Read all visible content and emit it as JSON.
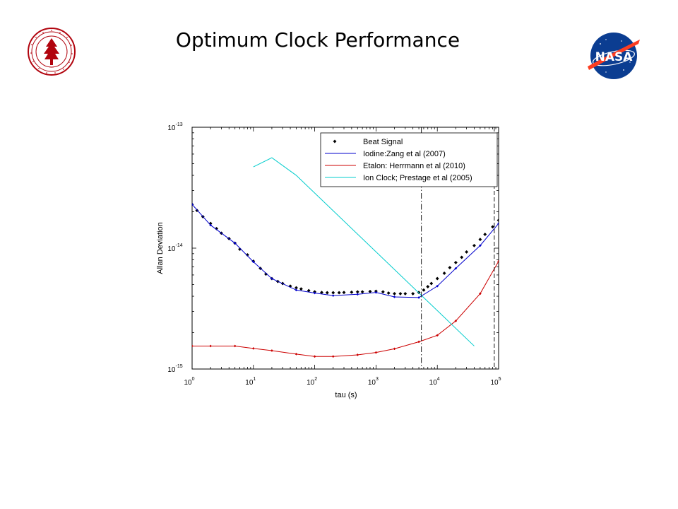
{
  "slide": {
    "title": "Optimum Clock Performance",
    "left_logo": "stanford-seal-icon",
    "right_logo": "nasa-logo-icon"
  },
  "chart_data": {
    "type": "line",
    "xlabel": "tau (s)",
    "ylabel": "Allan Deviation",
    "xscale": "log",
    "yscale": "log",
    "xlim": [
      1,
      100000
    ],
    "ylim": [
      1e-15,
      1e-13
    ],
    "x_ticks": [
      {
        "base": "10",
        "exp": "0"
      },
      {
        "base": "10",
        "exp": "1"
      },
      {
        "base": "10",
        "exp": "2"
      },
      {
        "base": "10",
        "exp": "3"
      },
      {
        "base": "10",
        "exp": "4"
      },
      {
        "base": "10",
        "exp": "5"
      }
    ],
    "y_ticks": [
      {
        "base": "10",
        "exp": "-15"
      },
      {
        "base": "10",
        "exp": "-14"
      },
      {
        "base": "10",
        "exp": "-13"
      }
    ],
    "grid": false,
    "legend_position": "top-right",
    "series": [
      {
        "name": "Beat Signal",
        "style": "markers",
        "color": "#000000",
        "x": [
          1,
          1.2,
          1.5,
          2,
          2.5,
          3,
          4,
          5,
          6,
          8,
          10,
          13,
          16,
          20,
          25,
          30,
          40,
          50,
          60,
          80,
          100,
          130,
          160,
          200,
          250,
          300,
          400,
          500,
          600,
          800,
          1000,
          1300,
          1600,
          2000,
          2500,
          3000,
          4000,
          5000,
          6000,
          7000,
          8000,
          10000,
          13000,
          16000,
          20000,
          25000,
          30000,
          40000,
          50000,
          60000,
          80000,
          100000
        ],
        "y": [
          2.3e-14,
          2.05e-14,
          1.82e-14,
          1.6e-14,
          1.45e-14,
          1.33e-14,
          1.2e-14,
          1.1e-14,
          9.8e-15,
          8.8e-15,
          7.8e-15,
          6.8e-15,
          6.1e-15,
          5.6e-15,
          5.3e-15,
          5.1e-15,
          4.85e-15,
          4.7e-15,
          4.6e-15,
          4.45e-15,
          4.35e-15,
          4.3e-15,
          4.28e-15,
          4.28e-15,
          4.28e-15,
          4.3e-15,
          4.32e-15,
          4.35e-15,
          4.35e-15,
          4.38e-15,
          4.4e-15,
          4.35e-15,
          4.25e-15,
          4.2e-15,
          4.2e-15,
          4.2e-15,
          4.2e-15,
          4.3e-15,
          4.5e-15,
          4.8e-15,
          5.1e-15,
          5.6e-15,
          6.2e-15,
          6.9e-15,
          7.6e-15,
          8.4e-15,
          9.3e-15,
          1.05e-14,
          1.18e-14,
          1.3e-14,
          1.5e-14,
          1.7e-14
        ]
      },
      {
        "name": "Iodine:Zang et al (2007)",
        "style": "line-markers",
        "color": "#0000cc",
        "x": [
          1,
          2,
          5,
          10,
          20,
          50,
          100,
          200,
          500,
          1000,
          2000,
          5000,
          10000,
          20000,
          50000,
          100000
        ],
        "y": [
          2.3e-14,
          1.55e-14,
          1.1e-14,
          7.7e-15,
          5.6e-15,
          4.5e-15,
          4.25e-15,
          4.05e-15,
          4.15e-15,
          4.3e-15,
          3.95e-15,
          3.9e-15,
          4.85e-15,
          6.8e-15,
          1.05e-14,
          1.6e-14
        ]
      },
      {
        "name": "Etalon: Herrmann et al (2010)",
        "style": "line-markers",
        "color": "#cc0000",
        "x": [
          1,
          2,
          5,
          10,
          20,
          50,
          100,
          200,
          500,
          1000,
          2000,
          5000,
          10000,
          20000,
          50000,
          100000
        ],
        "y": [
          1.55e-15,
          1.55e-15,
          1.55e-15,
          1.48e-15,
          1.42e-15,
          1.33e-15,
          1.27e-15,
          1.27e-15,
          1.31e-15,
          1.37e-15,
          1.47e-15,
          1.68e-15,
          1.9e-15,
          2.5e-15,
          4.2e-15,
          7.8e-15
        ]
      },
      {
        "name": "Ion Clock; Prestage et al (2005)",
        "style": "line",
        "color": "#00cccc",
        "x": [
          10,
          20,
          50,
          40000
        ],
        "y": [
          4.7e-14,
          5.6e-14,
          4e-14,
          1.55e-15
        ]
      }
    ],
    "vlines": [
      {
        "x": 5500,
        "style": "dash-dot",
        "color": "#000000"
      },
      {
        "x": 85000,
        "style": "dashed",
        "color": "#000000"
      }
    ]
  }
}
